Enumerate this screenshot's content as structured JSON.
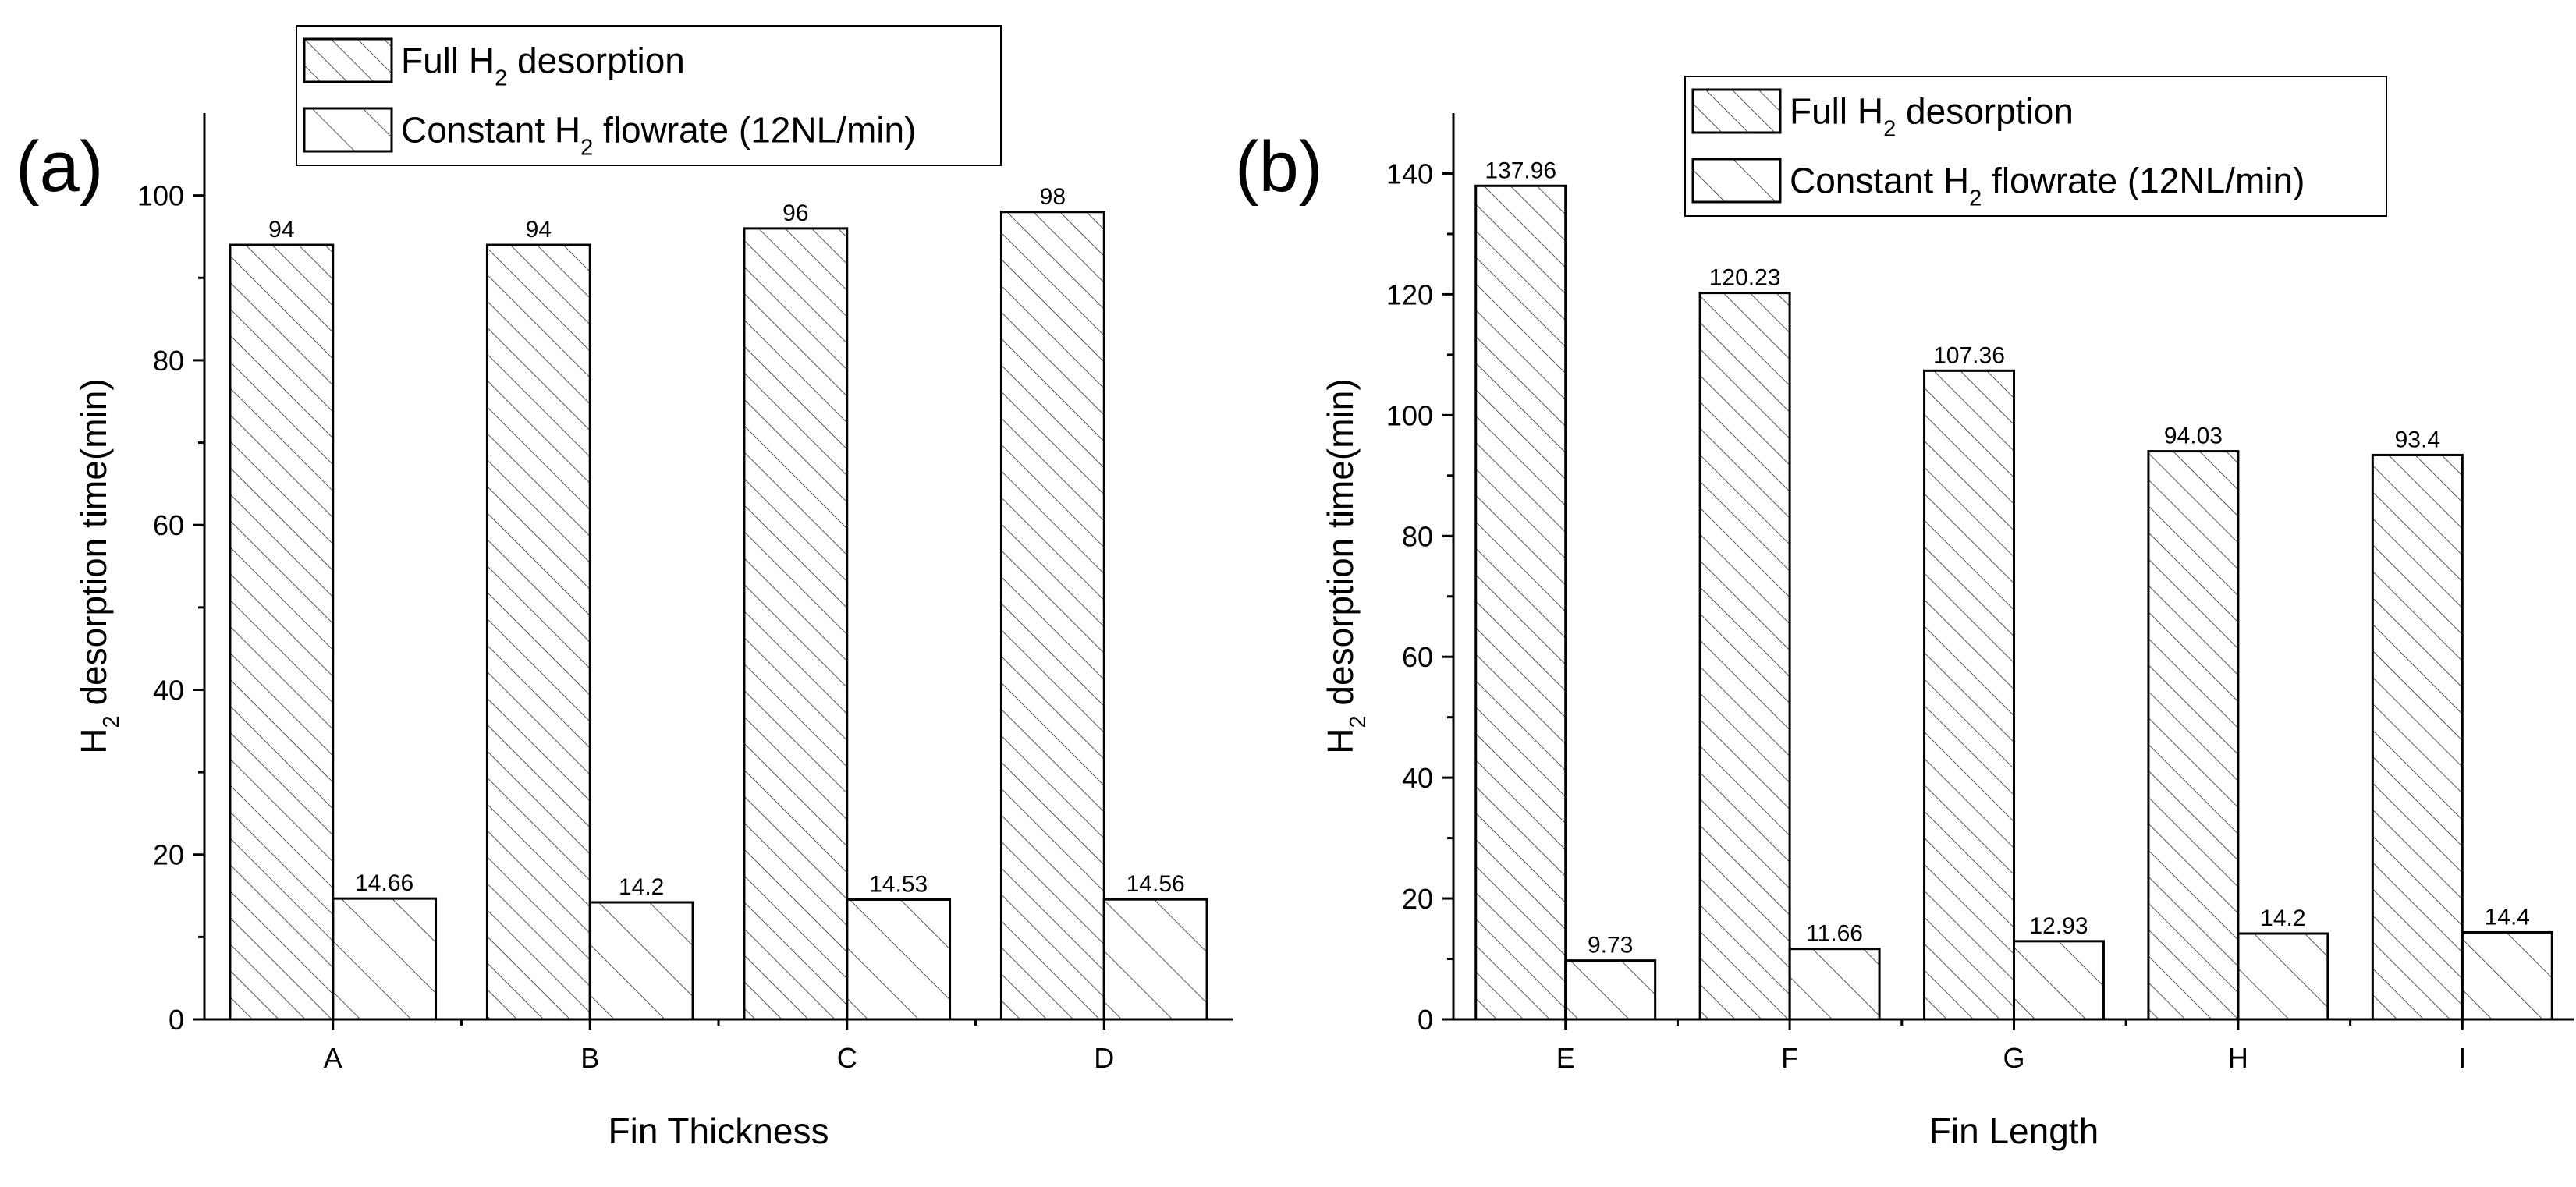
{
  "chart_data": [
    {
      "type": "bar",
      "panel_label": "(a)",
      "title": "",
      "xlabel": "Fin Thickness",
      "ylabel_main": "H",
      "ylabel_sub": "2",
      "ylabel_rest": " desorption time(min)",
      "categories": [
        "A",
        "B",
        "C",
        "D"
      ],
      "ylim": [
        0,
        110
      ],
      "yticks": [
        0,
        20,
        40,
        60,
        80,
        100
      ],
      "grid": false,
      "legend_position": "top-right-outside",
      "series": [
        {
          "name": "Full H2 desorption",
          "legend_main": "Full H",
          "legend_sub": "2",
          "legend_rest": " desorption",
          "hatch": "dense",
          "values": [
            94,
            94,
            96,
            98
          ],
          "labels": [
            "94",
            "94",
            "96",
            "98"
          ]
        },
        {
          "name": "Constant H2 flowrate (12NL/min)",
          "legend_main": "Constant H",
          "legend_sub": "2",
          "legend_rest": " flowrate (12NL/min)",
          "hatch": "sparse",
          "values": [
            14.66,
            14.2,
            14.53,
            14.56
          ],
          "labels": [
            "14.66",
            "14.2",
            "14.53",
            "14.56"
          ]
        }
      ]
    },
    {
      "type": "bar",
      "panel_label": "(b)",
      "title": "",
      "xlabel": "Fin Length",
      "ylabel_main": "H",
      "ylabel_sub": "2",
      "ylabel_rest": " desorption time(min)",
      "categories": [
        "E",
        "F",
        "G",
        "H",
        "I"
      ],
      "ylim": [
        0,
        150
      ],
      "yticks": [
        0,
        20,
        40,
        60,
        80,
        100,
        120,
        140
      ],
      "grid": false,
      "legend_position": "top-right",
      "series": [
        {
          "name": "Full H2 desorption",
          "legend_main": "Full H",
          "legend_sub": "2",
          "legend_rest": " desorption",
          "hatch": "dense",
          "values": [
            137.96,
            120.23,
            107.36,
            94.03,
            93.4
          ],
          "labels": [
            "137.96",
            "120.23",
            "107.36",
            "94.03",
            "93.4"
          ]
        },
        {
          "name": "Constant H2 flowrate (12NL/min)",
          "legend_main": "Constant H",
          "legend_sub": "2",
          "legend_rest": " flowrate (12NL/min)",
          "hatch": "sparse",
          "values": [
            9.73,
            11.66,
            12.93,
            14.2,
            14.4
          ],
          "labels": [
            "9.73",
            "11.66",
            "12.93",
            "14.2",
            "14.4"
          ]
        }
      ]
    }
  ]
}
